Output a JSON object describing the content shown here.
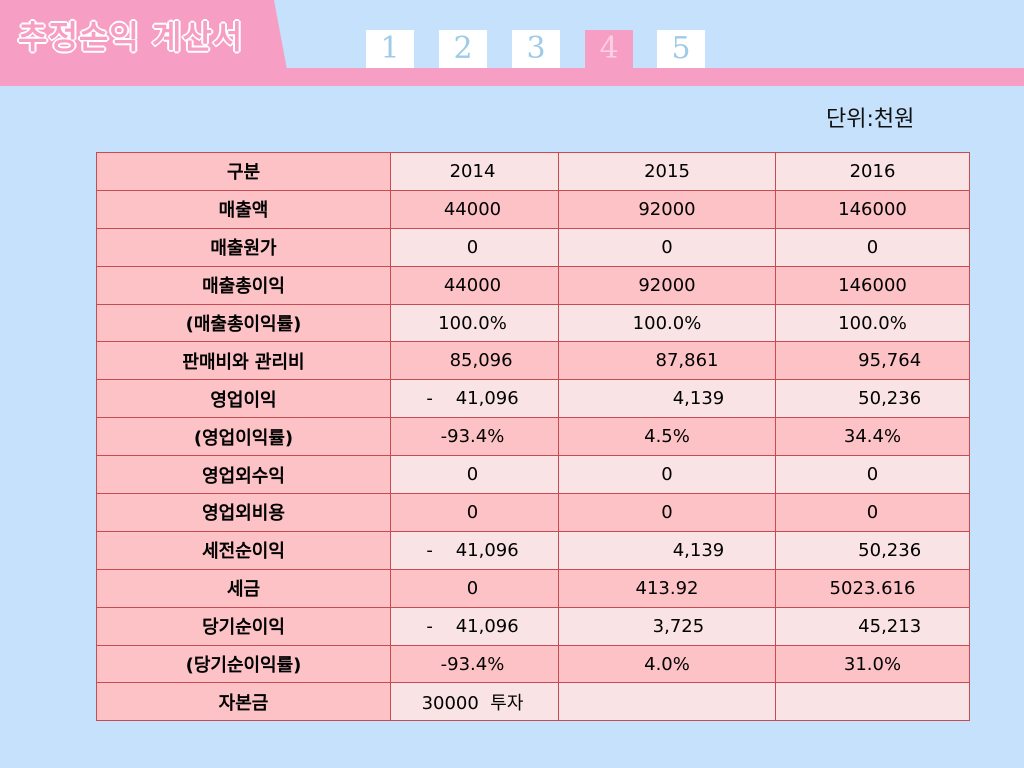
{
  "title": "추정손익 계산서",
  "page_tabs": [
    "1",
    "2",
    "3",
    "4",
    "5"
  ],
  "active_tab": "4",
  "unit_label": "단위:천원",
  "table": {
    "header": [
      "구분",
      "2014",
      "2015",
      "2016"
    ],
    "rows": [
      [
        "매출액",
        "44000",
        "92000",
        "146000"
      ],
      [
        "매출원가",
        "0",
        "0",
        "0"
      ],
      [
        "매출총이익",
        "44000",
        "92000",
        "146000"
      ],
      [
        "(매출총이익률)",
        "100.0%",
        "100.0%",
        "100.0%"
      ],
      [
        "판매비와 관리비",
        "   85,096",
        "       87,861",
        "      95,764"
      ],
      [
        "영업이익",
        "-    41,096",
        "           4,139",
        "      50,236"
      ],
      [
        "(영업이익률)",
        "-93.4%",
        "4.5%",
        "34.4%"
      ],
      [
        "영업외수익",
        "0",
        "0",
        "0"
      ],
      [
        "영업외비용",
        "0",
        "0",
        "0"
      ],
      [
        "세전순이익",
        "-    41,096",
        "           4,139",
        "      50,236"
      ],
      [
        "세금",
        "0",
        "413.92",
        "5023.616"
      ],
      [
        "당기순이익",
        "-    41,096",
        "    3,725",
        "      45,213"
      ],
      [
        "(당기순이익률)",
        "-93.4%",
        "4.0%",
        "31.0%"
      ],
      [
        "자본금",
        "30000  투자",
        "",
        ""
      ]
    ]
  },
  "colors": {
    "background": "#c5e1fb",
    "header_band": "#f79ec4",
    "label_cell": "#fdc2c6",
    "value_cell_light": "#f9e3e4",
    "border": "#c64b53"
  }
}
